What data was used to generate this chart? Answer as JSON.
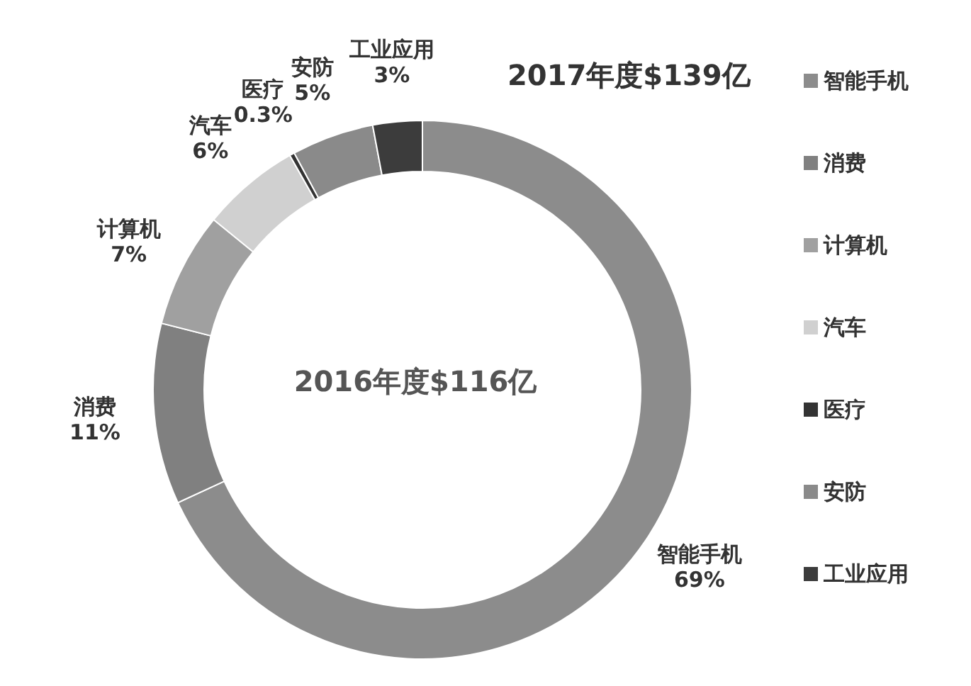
{
  "chart_data": {
    "type": "donut",
    "title": "2017年度$139亿",
    "annotations": [
      "2016年度$116亿"
    ],
    "categories": [
      "智能手机",
      "消费",
      "计算机",
      "汽车",
      "医疗",
      "安防",
      "工业应用"
    ],
    "values": [
      69,
      11,
      7,
      6,
      0.3,
      5,
      3
    ],
    "value_labels": [
      "69%",
      "11%",
      "7%",
      "6%",
      "0.3%",
      "5%",
      "3%"
    ],
    "colors": [
      "#8c8c8c",
      "#808080",
      "#a0a0a0",
      "#d0d0d0",
      "#333333",
      "#8a8a8a",
      "#3c3c3c"
    ],
    "legend": "right"
  }
}
